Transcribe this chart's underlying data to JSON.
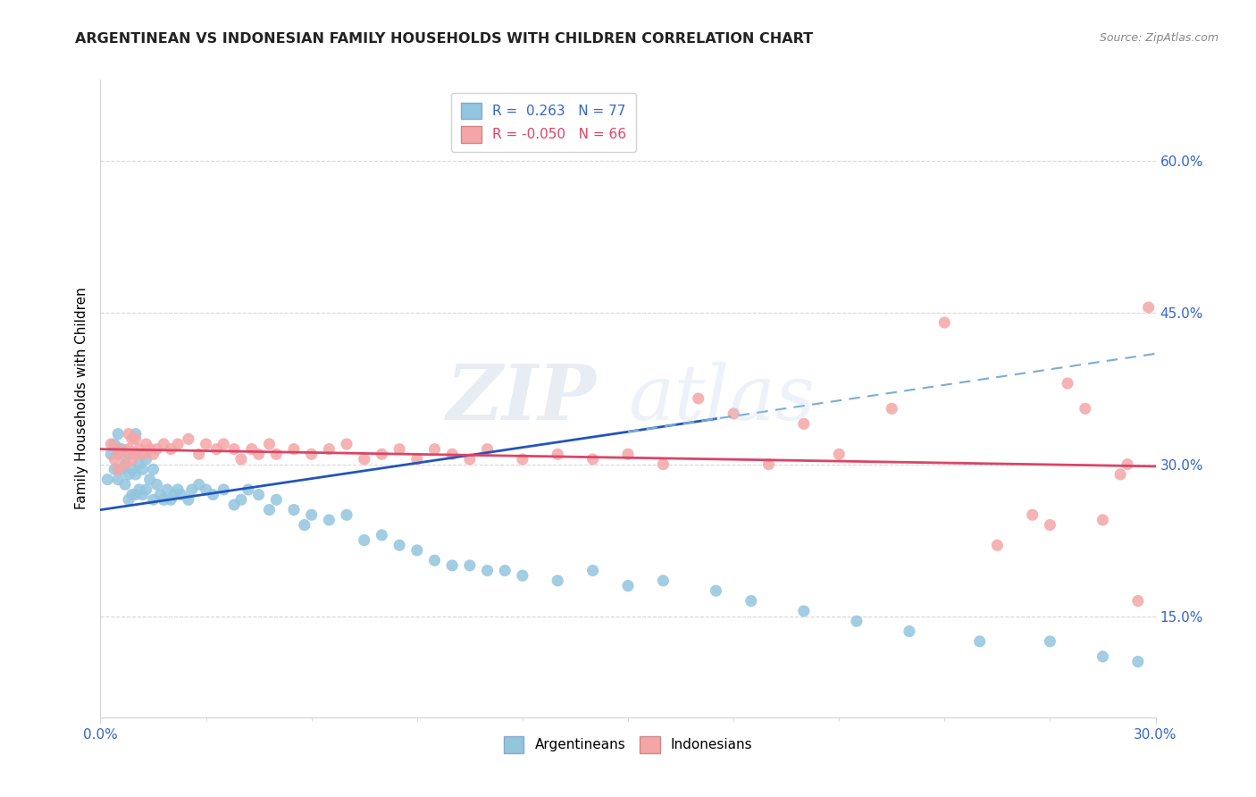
{
  "title": "ARGENTINEAN VS INDONESIAN FAMILY HOUSEHOLDS WITH CHILDREN CORRELATION CHART",
  "source": "Source: ZipAtlas.com",
  "ylabel": "Family Households with Children",
  "xlim": [
    0.0,
    0.3
  ],
  "ylim": [
    0.05,
    0.68
  ],
  "yticks": [
    0.15,
    0.3,
    0.45,
    0.6
  ],
  "ytick_labels": [
    "15.0%",
    "30.0%",
    "45.0%",
    "60.0%"
  ],
  "xticks": [
    0.0,
    0.3
  ],
  "xtick_labels": [
    "0.0%",
    "30.0%"
  ],
  "blue_color": "#92C5DE",
  "pink_color": "#F4A6A6",
  "trend_blue_solid": "#2255BB",
  "trend_pink_solid": "#DD4466",
  "trend_blue_dashed": "#7AADD4",
  "watermark_text": "ZIPatlas",
  "argentinean_x": [
    0.002,
    0.003,
    0.004,
    0.004,
    0.005,
    0.005,
    0.005,
    0.006,
    0.006,
    0.007,
    0.007,
    0.008,
    0.008,
    0.008,
    0.009,
    0.009,
    0.01,
    0.01,
    0.01,
    0.01,
    0.011,
    0.011,
    0.012,
    0.012,
    0.013,
    0.013,
    0.014,
    0.015,
    0.015,
    0.016,
    0.017,
    0.018,
    0.019,
    0.02,
    0.021,
    0.022,
    0.023,
    0.025,
    0.026,
    0.028,
    0.03,
    0.032,
    0.035,
    0.038,
    0.04,
    0.042,
    0.045,
    0.048,
    0.05,
    0.055,
    0.058,
    0.06,
    0.065,
    0.07,
    0.075,
    0.08,
    0.085,
    0.09,
    0.095,
    0.1,
    0.105,
    0.11,
    0.115,
    0.12,
    0.13,
    0.14,
    0.15,
    0.16,
    0.175,
    0.185,
    0.2,
    0.215,
    0.23,
    0.25,
    0.27,
    0.285,
    0.295
  ],
  "argentinean_y": [
    0.285,
    0.31,
    0.295,
    0.32,
    0.285,
    0.31,
    0.33,
    0.295,
    0.315,
    0.28,
    0.3,
    0.265,
    0.29,
    0.31,
    0.27,
    0.295,
    0.27,
    0.29,
    0.31,
    0.33,
    0.275,
    0.3,
    0.27,
    0.295,
    0.275,
    0.305,
    0.285,
    0.265,
    0.295,
    0.28,
    0.27,
    0.265,
    0.275,
    0.265,
    0.27,
    0.275,
    0.27,
    0.265,
    0.275,
    0.28,
    0.275,
    0.27,
    0.275,
    0.26,
    0.265,
    0.275,
    0.27,
    0.255,
    0.265,
    0.255,
    0.24,
    0.25,
    0.245,
    0.25,
    0.225,
    0.23,
    0.22,
    0.215,
    0.205,
    0.2,
    0.2,
    0.195,
    0.195,
    0.19,
    0.185,
    0.195,
    0.18,
    0.185,
    0.175,
    0.165,
    0.155,
    0.145,
    0.135,
    0.125,
    0.125,
    0.11,
    0.105
  ],
  "indonesian_x": [
    0.003,
    0.004,
    0.005,
    0.005,
    0.006,
    0.007,
    0.008,
    0.008,
    0.009,
    0.009,
    0.01,
    0.01,
    0.011,
    0.012,
    0.013,
    0.014,
    0.015,
    0.016,
    0.018,
    0.02,
    0.022,
    0.025,
    0.028,
    0.03,
    0.033,
    0.035,
    0.038,
    0.04,
    0.043,
    0.045,
    0.048,
    0.05,
    0.055,
    0.06,
    0.065,
    0.07,
    0.075,
    0.08,
    0.085,
    0.09,
    0.095,
    0.1,
    0.105,
    0.11,
    0.12,
    0.13,
    0.14,
    0.15,
    0.16,
    0.17,
    0.18,
    0.19,
    0.2,
    0.21,
    0.225,
    0.24,
    0.255,
    0.265,
    0.27,
    0.275,
    0.28,
    0.285,
    0.29,
    0.292,
    0.295,
    0.298
  ],
  "indonesian_y": [
    0.32,
    0.305,
    0.295,
    0.315,
    0.31,
    0.3,
    0.315,
    0.33,
    0.305,
    0.325,
    0.31,
    0.325,
    0.315,
    0.31,
    0.32,
    0.315,
    0.31,
    0.315,
    0.32,
    0.315,
    0.32,
    0.325,
    0.31,
    0.32,
    0.315,
    0.32,
    0.315,
    0.305,
    0.315,
    0.31,
    0.32,
    0.31,
    0.315,
    0.31,
    0.315,
    0.32,
    0.305,
    0.31,
    0.315,
    0.305,
    0.315,
    0.31,
    0.305,
    0.315,
    0.305,
    0.31,
    0.305,
    0.31,
    0.3,
    0.365,
    0.35,
    0.3,
    0.34,
    0.31,
    0.355,
    0.44,
    0.22,
    0.25,
    0.24,
    0.38,
    0.355,
    0.245,
    0.29,
    0.3,
    0.165,
    0.455
  ]
}
